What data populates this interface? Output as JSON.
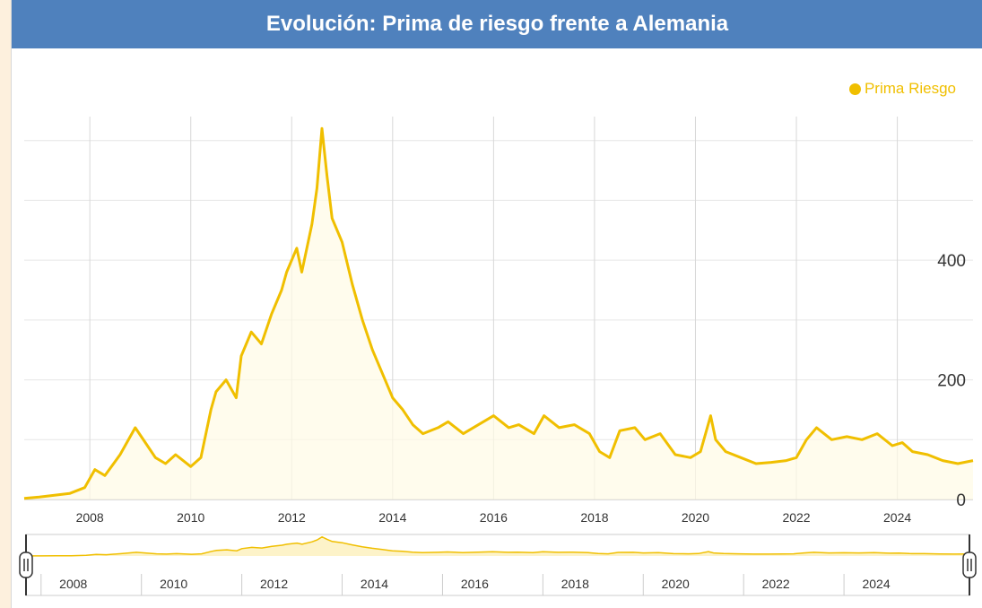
{
  "colors": {
    "header_bg": "#4f81bd",
    "series": "#f0bf00",
    "grid": "#d8d8d8"
  },
  "chart_data": {
    "type": "line",
    "title": "Evolución: Prima de riesgo frente a Alemania",
    "legend": {
      "label": "Prima Riesgo",
      "position": "top-right"
    },
    "xlabel": "",
    "ylabel": "",
    "xlim": [
      2006.7,
      2025.5
    ],
    "ylim": [
      0,
      640
    ],
    "y_ticks": [
      0,
      200,
      400
    ],
    "x_ticks": [
      2008,
      2010,
      2012,
      2014,
      2016,
      2018,
      2020,
      2022,
      2024
    ],
    "series": [
      {
        "name": "Prima Riesgo",
        "x": [
          2006.7,
          2007.0,
          2007.3,
          2007.6,
          2007.9,
          2008.1,
          2008.3,
          2008.6,
          2008.9,
          2009.1,
          2009.3,
          2009.5,
          2009.7,
          2010.0,
          2010.2,
          2010.4,
          2010.5,
          2010.7,
          2010.9,
          2011.0,
          2011.2,
          2011.4,
          2011.6,
          2011.8,
          2011.9,
          2012.1,
          2012.2,
          2012.4,
          2012.5,
          2012.6,
          2012.7,
          2012.8,
          2013.0,
          2013.2,
          2013.4,
          2013.6,
          2013.8,
          2014.0,
          2014.2,
          2014.4,
          2014.6,
          2014.9,
          2015.1,
          2015.4,
          2015.7,
          2016.0,
          2016.3,
          2016.5,
          2016.8,
          2017.0,
          2017.3,
          2017.6,
          2017.9,
          2018.1,
          2018.3,
          2018.5,
          2018.8,
          2019.0,
          2019.3,
          2019.6,
          2019.9,
          2020.1,
          2020.3,
          2020.4,
          2020.6,
          2020.9,
          2021.2,
          2021.5,
          2021.8,
          2022.0,
          2022.2,
          2022.4,
          2022.7,
          2023.0,
          2023.3,
          2023.6,
          2023.9,
          2024.1,
          2024.3,
          2024.6,
          2024.9,
          2025.2,
          2025.5
        ],
        "values": [
          2,
          4,
          7,
          10,
          20,
          50,
          40,
          75,
          120,
          95,
          70,
          60,
          75,
          55,
          70,
          150,
          180,
          200,
          170,
          240,
          280,
          260,
          310,
          350,
          380,
          420,
          380,
          460,
          520,
          620,
          540,
          470,
          430,
          360,
          300,
          250,
          210,
          170,
          150,
          125,
          110,
          120,
          130,
          110,
          125,
          140,
          120,
          125,
          110,
          140,
          120,
          125,
          110,
          80,
          70,
          115,
          120,
          100,
          110,
          75,
          70,
          80,
          140,
          100,
          80,
          70,
          60,
          62,
          65,
          70,
          100,
          120,
          100,
          105,
          100,
          110,
          90,
          95,
          80,
          75,
          65,
          60,
          65
        ]
      }
    ],
    "navigator": {
      "x_ticks": [
        2008,
        2010,
        2012,
        2014,
        2016,
        2018,
        2020,
        2022,
        2024
      ]
    }
  }
}
